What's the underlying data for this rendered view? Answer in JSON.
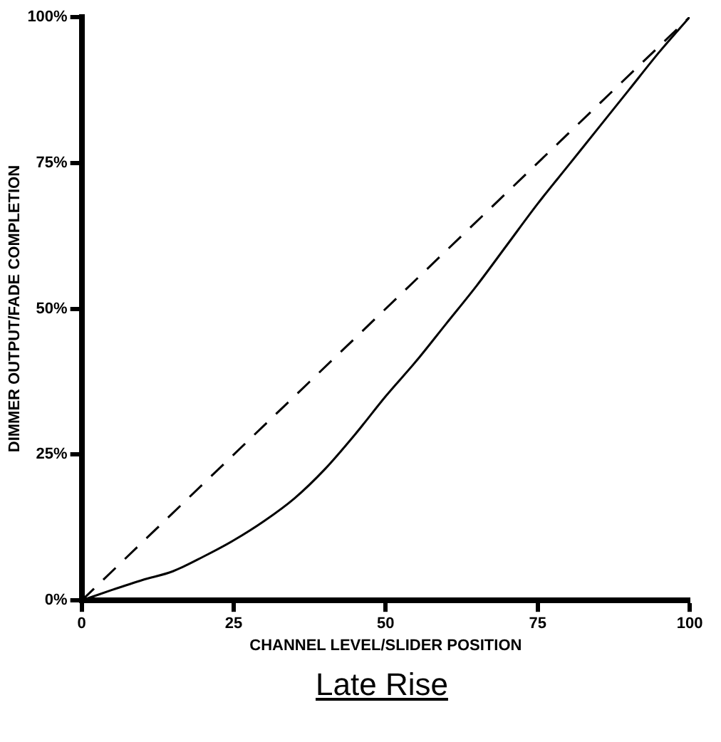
{
  "chart_data": {
    "type": "line",
    "title": "Late Rise",
    "xlabel": "CHANNEL LEVEL/SLIDER POSITION",
    "ylabel": "DIMMER OUTPUT/FADE COMPLETION",
    "x": [
      0,
      5,
      10,
      15,
      20,
      25,
      30,
      35,
      40,
      45,
      50,
      55,
      60,
      65,
      70,
      75,
      80,
      85,
      90,
      95,
      100
    ],
    "series": [
      {
        "color": "#000000",
        "line_style": "solid",
        "values": [
          0,
          1.8,
          3.5,
          5,
          7.5,
          10.3,
          13.6,
          17.5,
          22.5,
          28.5,
          35,
          41,
          47.5,
          54,
          61,
          68,
          74.5,
          81,
          87.5,
          94,
          100
        ]
      },
      {
        "color": "#000000",
        "line_style": "dashed",
        "x": [
          0,
          100
        ],
        "values": [
          0,
          100
        ]
      }
    ],
    "xlim": [
      0,
      100
    ],
    "xticks": [
      0,
      25,
      50,
      75,
      100
    ],
    "ylim": [
      0,
      100
    ],
    "yticks": [
      {
        "value": 0,
        "label": "0%"
      },
      {
        "value": 25,
        "label": "25%"
      },
      {
        "value": 50,
        "label": "50%"
      },
      {
        "value": 75,
        "label": "75%"
      },
      {
        "value": 100,
        "label": "100%"
      }
    ],
    "grid": false,
    "legend": false,
    "marker": "none"
  }
}
